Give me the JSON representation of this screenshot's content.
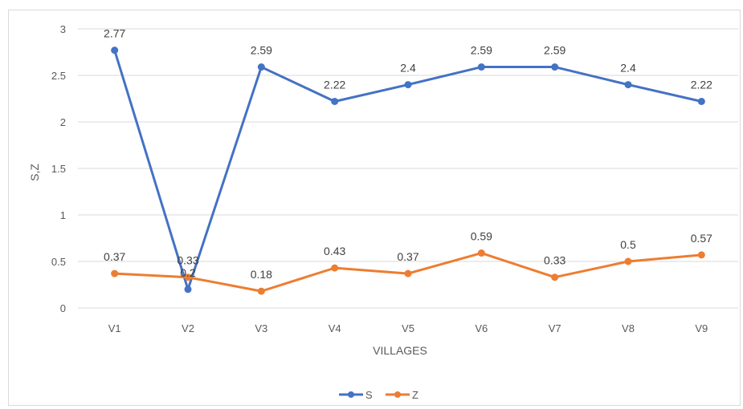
{
  "chart_data": {
    "type": "line",
    "title": "",
    "xlabel": "VILLAGES",
    "ylabel": "S,Z",
    "categories": [
      "V1",
      "V2",
      "V3",
      "V4",
      "V5",
      "V6",
      "V7",
      "V8",
      "V9"
    ],
    "ylim": [
      0,
      3
    ],
    "yticks": [
      0,
      0.5,
      1,
      1.5,
      2,
      2.5,
      3
    ],
    "grid": true,
    "legend": "bottom-center",
    "series": [
      {
        "name": "S",
        "color": "#4472C4",
        "values": [
          2.77,
          0.2,
          2.59,
          2.22,
          2.4,
          2.59,
          2.59,
          2.4,
          2.22
        ],
        "labels": [
          "2.77",
          "0.2",
          "2.59",
          "2.22",
          "2.4",
          "2.59",
          "2.59",
          "2.4",
          "2.22"
        ]
      },
      {
        "name": "Z",
        "color": "#ED7D31",
        "values": [
          0.37,
          0.33,
          0.18,
          0.43,
          0.37,
          0.59,
          0.33,
          0.5,
          0.57
        ],
        "labels": [
          "0.37",
          "0.33",
          "0.18",
          "0.43",
          "0.37",
          "0.59",
          "0.33",
          "0.5",
          "0.57"
        ]
      }
    ]
  }
}
